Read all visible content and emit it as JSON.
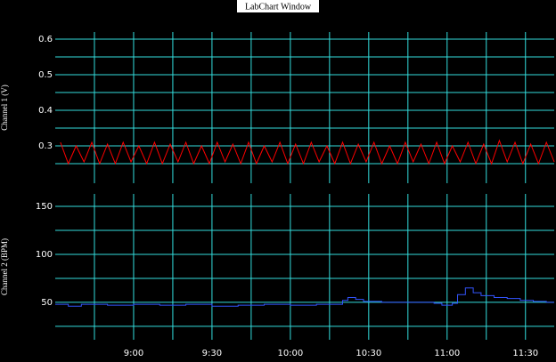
{
  "window_title": "LabChart Window",
  "chart_data": [
    {
      "type": "line",
      "ylabel": "Channel 1 (V)",
      "ylim": [
        0.195,
        0.62
      ],
      "yticks": [
        0.3,
        0.4,
        0.5,
        0.6
      ],
      "xlim": [
        510,
        701
      ],
      "grid": true,
      "series": [
        {
          "name": "Channel 1",
          "color": "#ff0000",
          "x": [
            512,
            515,
            518,
            521,
            524,
            527,
            530,
            533,
            536,
            539,
            542,
            545,
            548,
            551,
            554,
            557,
            560,
            563,
            566,
            569,
            572,
            575,
            578,
            581,
            584,
            587,
            590,
            593,
            596,
            599,
            602,
            605,
            608,
            611,
            614,
            617,
            620,
            623,
            626,
            629,
            632,
            635,
            638,
            641,
            644,
            647,
            650,
            653,
            656,
            659,
            662,
            665,
            668,
            671,
            674,
            677,
            680,
            683,
            686,
            689,
            692,
            695,
            698,
            701
          ],
          "values": [
            0.31,
            0.25,
            0.3,
            0.255,
            0.31,
            0.25,
            0.305,
            0.25,
            0.31,
            0.255,
            0.3,
            0.25,
            0.31,
            0.25,
            0.305,
            0.255,
            0.31,
            0.25,
            0.3,
            0.25,
            0.31,
            0.255,
            0.305,
            0.25,
            0.31,
            0.25,
            0.3,
            0.255,
            0.31,
            0.25,
            0.305,
            0.25,
            0.31,
            0.255,
            0.3,
            0.25,
            0.31,
            0.25,
            0.305,
            0.255,
            0.31,
            0.25,
            0.3,
            0.25,
            0.31,
            0.255,
            0.305,
            0.25,
            0.31,
            0.25,
            0.3,
            0.255,
            0.31,
            0.25,
            0.305,
            0.25,
            0.315,
            0.255,
            0.31,
            0.25,
            0.305,
            0.25,
            0.31,
            0.255
          ]
        }
      ]
    },
    {
      "type": "line",
      "step": true,
      "ylabel": "Channel 2 (BPM)",
      "ylim": [
        11,
        163
      ],
      "yticks": [
        50,
        100,
        150
      ],
      "xlim": [
        510,
        701
      ],
      "grid": true,
      "xticks": [
        {
          "value": 540,
          "label": "9:00"
        },
        {
          "value": 570,
          "label": "9:30"
        },
        {
          "value": 600,
          "label": "10:00"
        },
        {
          "value": 630,
          "label": "10:30"
        },
        {
          "value": 660,
          "label": "11:00"
        },
        {
          "value": 690,
          "label": "11:30"
        }
      ],
      "series": [
        {
          "name": "Channel 2",
          "color": "#3355ff",
          "x": [
            510,
            515,
            520,
            530,
            540,
            550,
            560,
            570,
            580,
            590,
            600,
            610,
            617,
            620,
            622,
            625,
            628,
            635,
            645,
            655,
            658,
            662,
            664,
            667,
            670,
            673,
            678,
            683,
            688,
            693,
            698,
            701
          ],
          "values": [
            48,
            46,
            48,
            47,
            48,
            47,
            48,
            46,
            47,
            48,
            47,
            48,
            48,
            52,
            55,
            53,
            51,
            50,
            50,
            49,
            47,
            49,
            58,
            65,
            60,
            57,
            55,
            54,
            52,
            51,
            50,
            50
          ]
        }
      ]
    }
  ]
}
